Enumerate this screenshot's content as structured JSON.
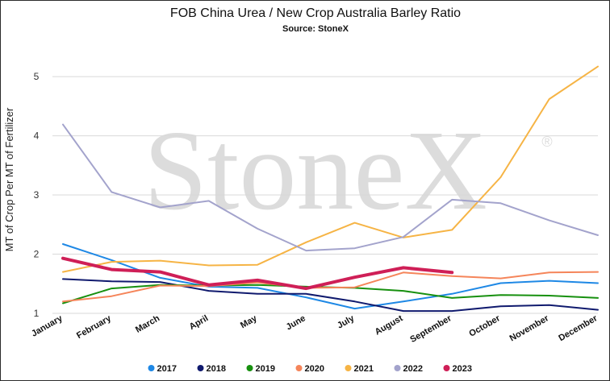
{
  "chart_data": {
    "type": "line",
    "title": "FOB China Urea / New Crop Australia Barley Ratio",
    "subtitle": "Source: StoneX",
    "ylabel": "MT of Crop Per MT of Fertilizer",
    "xlabel": "",
    "categories": [
      "January",
      "February",
      "March",
      "April",
      "May",
      "June",
      "July",
      "August",
      "September",
      "October",
      "November",
      "December"
    ],
    "ylim": [
      1,
      5.6
    ],
    "yticks": [
      1,
      2,
      3,
      4,
      5
    ],
    "grid": true,
    "legend_position": "bottom",
    "watermark": "StoneX",
    "watermark_mark": "®",
    "series": [
      {
        "name": "2017",
        "color": "#1e88e5",
        "width": 2,
        "values": [
          2.17,
          1.9,
          1.6,
          1.45,
          1.43,
          1.27,
          1.08,
          1.2,
          1.33,
          1.51,
          1.55,
          1.51
        ]
      },
      {
        "name": "2018",
        "color": "#101a6e",
        "width": 2,
        "values": [
          1.58,
          1.54,
          1.53,
          1.38,
          1.33,
          1.33,
          1.2,
          1.04,
          1.04,
          1.12,
          1.14,
          1.06
        ]
      },
      {
        "name": "2019",
        "color": "#17900f",
        "width": 2,
        "values": [
          1.17,
          1.42,
          1.48,
          1.47,
          1.48,
          1.45,
          1.43,
          1.38,
          1.26,
          1.31,
          1.3,
          1.26
        ]
      },
      {
        "name": "2020",
        "color": "#f5855a",
        "width": 2,
        "values": [
          1.2,
          1.29,
          1.47,
          1.46,
          1.52,
          1.43,
          1.44,
          1.69,
          1.63,
          1.59,
          1.69,
          1.7
        ]
      },
      {
        "name": "2021",
        "color": "#f6b445",
        "width": 2,
        "values": [
          1.7,
          1.87,
          1.89,
          1.81,
          1.82,
          2.2,
          2.53,
          2.28,
          2.41,
          3.3,
          4.62,
          5.17
        ]
      },
      {
        "name": "2022",
        "color": "#a3a3cc",
        "width": 2,
        "values": [
          4.19,
          3.05,
          2.79,
          2.9,
          2.43,
          2.06,
          2.1,
          2.29,
          2.92,
          2.86,
          2.57,
          2.32
        ]
      },
      {
        "name": "2023",
        "color": "#cf1f57",
        "width": 4,
        "values": [
          1.93,
          1.74,
          1.7,
          1.48,
          1.56,
          1.42,
          1.61,
          1.77,
          1.69,
          null,
          null,
          null
        ]
      }
    ]
  }
}
